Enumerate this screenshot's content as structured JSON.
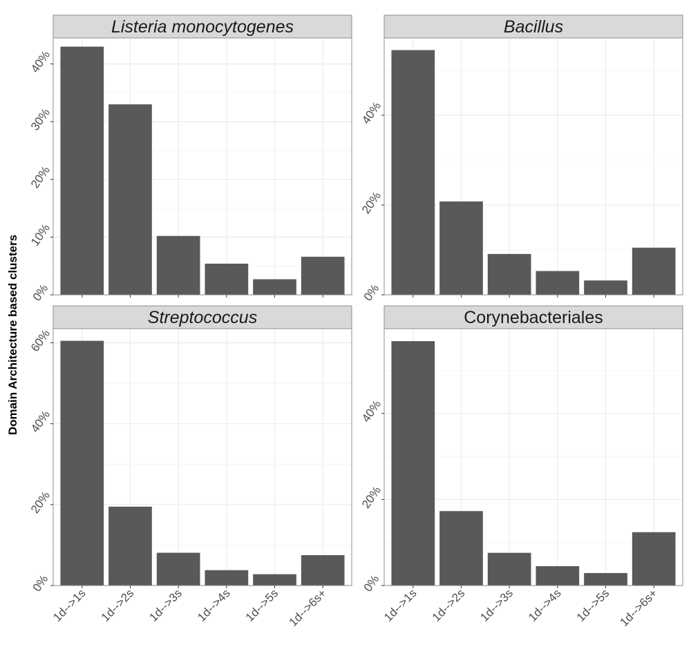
{
  "chart_data": {
    "type": "bar",
    "ylabel": "Domain Architecture based clusters",
    "categories": [
      "1d-->1s",
      "1d-->2s",
      "1d-->3s",
      "1d-->4s",
      "1d-->5s",
      "1d-->6s+"
    ],
    "bar_color": "#595959",
    "strip_color": "#d9d9d9",
    "grid": true,
    "panels": [
      {
        "title": "Listeria monocytogenes",
        "italic": true,
        "values": [
          43,
          33,
          10.2,
          5.4,
          2.7,
          6.6
        ],
        "ylim": [
          0,
          44.5
        ],
        "yticks": [
          0,
          10,
          20,
          30,
          40
        ],
        "ytick_labels": [
          "0%",
          "10%",
          "20%",
          "30%",
          "40%"
        ]
      },
      {
        "title": "Bacillus",
        "italic": true,
        "values": [
          54.5,
          20.8,
          9.1,
          5.3,
          3.2,
          10.5
        ],
        "ylim": [
          0,
          57.2
        ],
        "yticks": [
          0,
          20,
          40
        ],
        "ytick_labels": [
          "0%",
          "20%",
          "40%"
        ]
      },
      {
        "title": "Streptococcus",
        "italic": true,
        "values": [
          60.5,
          19.5,
          8.1,
          3.8,
          2.8,
          7.5
        ],
        "ylim": [
          0,
          63.5
        ],
        "yticks": [
          0,
          20,
          40,
          60
        ],
        "ytick_labels": [
          "0%",
          "20%",
          "40%",
          "60%"
        ]
      },
      {
        "title": "Corynebacteriales",
        "italic": false,
        "values": [
          56.8,
          17.3,
          7.6,
          4.5,
          2.9,
          12.4
        ],
        "ylim": [
          0,
          59.7
        ],
        "yticks": [
          0,
          20,
          40
        ],
        "ytick_labels": [
          "0%",
          "20%",
          "40%"
        ]
      }
    ]
  }
}
